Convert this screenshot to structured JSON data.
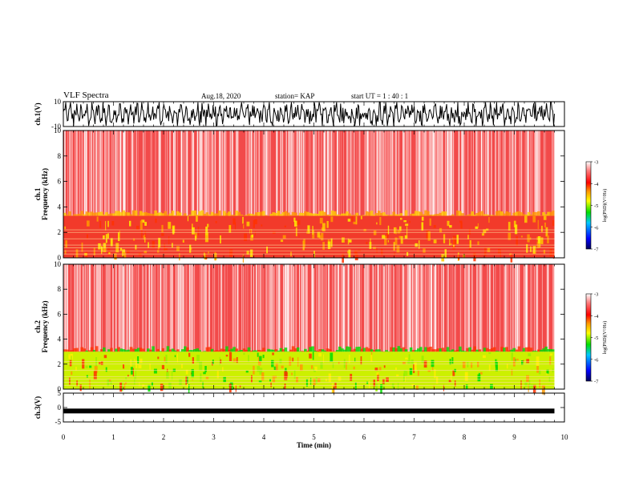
{
  "header": {
    "title": "VLF Spectra",
    "date": "Aug.18, 2020",
    "station": "station= KAP",
    "start_ut": "start  UT =   1 : 40 : 1"
  },
  "chart_data": [
    {
      "type": "line",
      "panel": "ch1-waveform",
      "ylabel": "ch.1(V)",
      "ylim": [
        -10,
        10
      ],
      "yticks": [
        "10",
        "-10"
      ],
      "xlim": [
        0,
        10
      ],
      "data_end_min": 9.8,
      "color": "#000000",
      "description_level": "dense oscillation roughly between -9 and 9 V"
    },
    {
      "type": "heatmap",
      "panel": "ch1-spectrogram",
      "ylabel": "ch.1\nFrequency (kHz)",
      "ylim": [
        0,
        10
      ],
      "yticks": [
        "0",
        "2",
        "4",
        "6",
        "8",
        "10"
      ],
      "xlim": [
        0,
        10
      ],
      "data_end_min": 9.8,
      "band_top_khz": 3.3,
      "colorbar": {
        "label": "log(PSD)(V²/Hz)",
        "range": [
          -7,
          -3
        ],
        "ticks": [
          "-3",
          "-4",
          "-5",
          "-6",
          "-7"
        ],
        "colors": [
          "#00005a",
          "#0000ff",
          "#00c8ff",
          "#00e000",
          "#ffff00",
          "#ff9900",
          "#ff0000",
          "#ff8080",
          "#ffffff"
        ]
      }
    },
    {
      "type": "heatmap",
      "panel": "ch2-spectrogram",
      "ylabel": "ch.2\nFrequency (kHz)",
      "ylim": [
        0,
        10
      ],
      "yticks": [
        "0",
        "2",
        "4",
        "6",
        "8",
        "10"
      ],
      "xlim": [
        0,
        10
      ],
      "data_end_min": 9.8,
      "band_top_khz": 3.0,
      "colorbar": {
        "label": "log(PSD)(V²/Hz)",
        "range": [
          -7,
          -3
        ],
        "ticks": [
          "-3",
          "-4",
          "-5",
          "-6",
          "-7"
        ]
      }
    },
    {
      "type": "line",
      "panel": "ch3-waveform",
      "ylabel": "ch.3(V)",
      "ylim": [
        -5,
        5
      ],
      "yticks": [
        "5",
        "0",
        "-5"
      ],
      "xlim": [
        0,
        10
      ],
      "data_end_min": 9.8,
      "level_v": -1.2,
      "color": "#000000"
    }
  ],
  "x_axis": {
    "label": "Time (min)",
    "ticks": [
      "0",
      "1",
      "2",
      "3",
      "4",
      "5",
      "6",
      "7",
      "8",
      "9",
      "10"
    ]
  }
}
